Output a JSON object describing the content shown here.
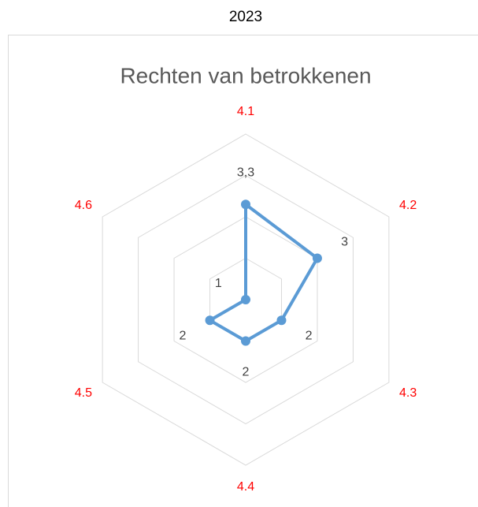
{
  "header": "2023",
  "chart_data": {
    "type": "radar",
    "title": "Rechten van betrokkenen",
    "categories": [
      "4.1",
      "4.2",
      "4.3",
      "4.4",
      "4.5",
      "4.6"
    ],
    "series": [
      {
        "name": "2023",
        "color": "#5b9bd5",
        "values": [
          3.3,
          3,
          2,
          2,
          2,
          1
        ],
        "value_labels": [
          "3,3",
          "3",
          "2",
          "2",
          "2",
          "1"
        ]
      }
    ],
    "ylim": [
      1,
      5
    ],
    "yticks": [
      1,
      2,
      3,
      4,
      5
    ],
    "grid": true,
    "category_color": "#ff0000"
  }
}
